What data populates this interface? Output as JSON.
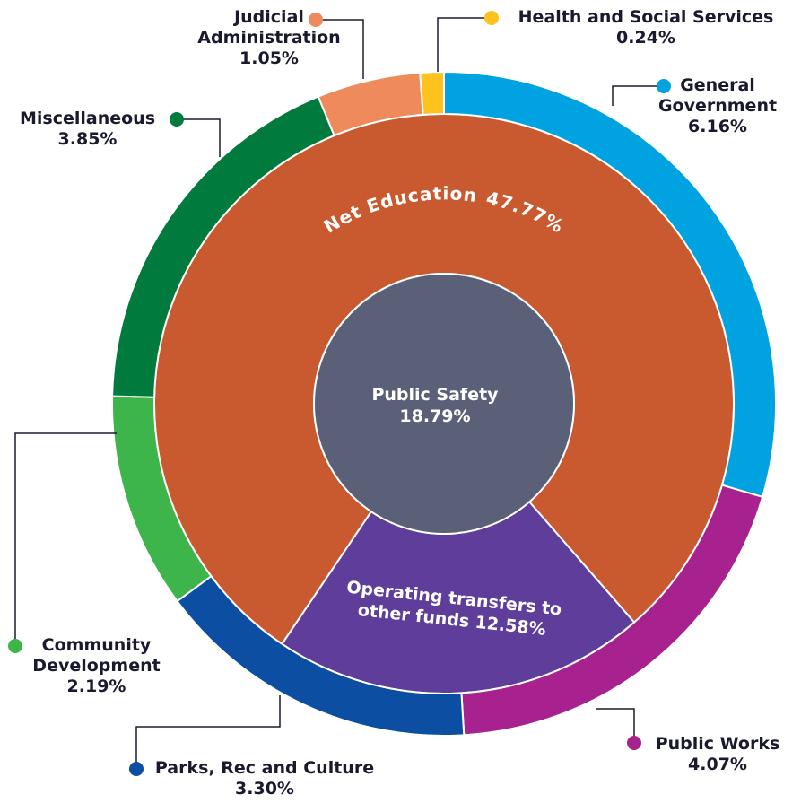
{
  "chart_data": {
    "type": "sunburst",
    "rings": [
      {
        "categories": [
          "Public Safety"
        ],
        "values": [
          18.79
        ],
        "value_labels": [
          "18.79%"
        ],
        "colors": [
          "#5a6078"
        ]
      },
      {
        "categories": [
          "Net Education",
          "Operating transfers to other funds"
        ],
        "values": [
          47.77,
          12.58
        ],
        "value_labels": [
          "47.77%",
          "12.58%"
        ],
        "colors": [
          "#c95a30",
          "#5e3e9a"
        ]
      },
      {
        "categories": [
          "General Government",
          "Public Works",
          "Parks, Rec and Culture",
          "Community Development",
          "Miscellaneous",
          "Judicial Administration",
          "Health and Social Services"
        ],
        "values": [
          6.16,
          4.07,
          3.3,
          2.19,
          3.85,
          1.05,
          0.24
        ],
        "value_labels": [
          "6.16%",
          "4.07%",
          "3.30%",
          "2.19%",
          "3.85%",
          "1.05%",
          "0.24%"
        ],
        "colors": [
          "#00a3e0",
          "#a7228e",
          "#0b4ea2",
          "#3db54a",
          "#007a3d",
          "#ef8a5a",
          "#fdc21e"
        ]
      }
    ]
  }
}
